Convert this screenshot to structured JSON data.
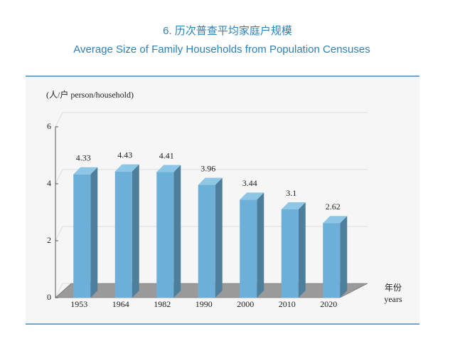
{
  "chart_data": {
    "type": "bar3d",
    "title": "6. 历次普查平均家庭户规模",
    "subtitle": "Average Size of Family Households from Population Censuses",
    "y_label": "(人/户 person/household)",
    "x_label": "年份",
    "x_label_en": "years",
    "categories": [
      "1953",
      "1964",
      "1982",
      "1990",
      "2000",
      "2010",
      "2020"
    ],
    "values": [
      4.33,
      4.43,
      4.41,
      3.96,
      3.44,
      3.1,
      2.62
    ],
    "color": "#6cb0da",
    "ylim": [
      0,
      6
    ],
    "yticks": [
      0,
      2,
      4,
      6
    ],
    "grid": true
  }
}
